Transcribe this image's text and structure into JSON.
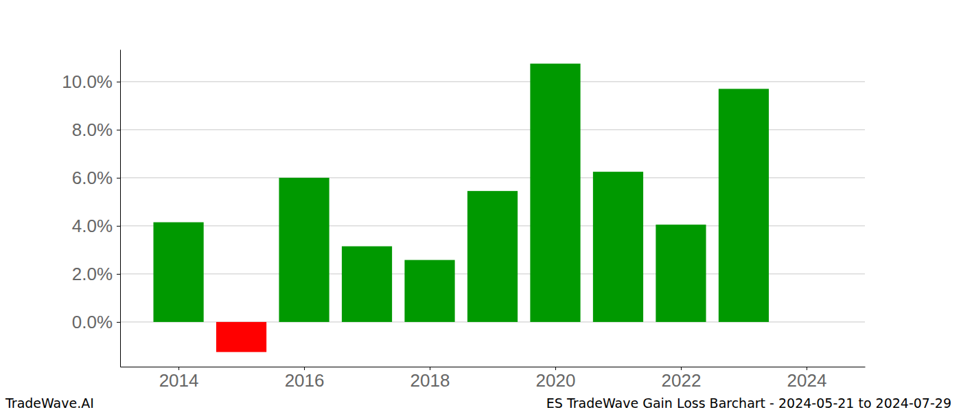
{
  "chart_data": {
    "type": "bar",
    "title": "ES TradeWave Gain Loss Barchart - 2024-05-21 to 2024-07-29",
    "annotations": [
      "TradeWave.AI"
    ],
    "x": [
      2014,
      2015,
      2016,
      2017,
      2018,
      2019,
      2020,
      2021,
      2022,
      2023
    ],
    "values": [
      4.15,
      -1.25,
      6.0,
      3.15,
      2.58,
      5.45,
      10.75,
      6.25,
      4.05,
      9.7
    ],
    "colors": [
      "#009900",
      "#ff0000",
      "#009900",
      "#009900",
      "#009900",
      "#009900",
      "#009900",
      "#009900",
      "#009900",
      "#009900"
    ],
    "xlim": [
      2013.07,
      2024.93
    ],
    "xticks": [
      2014,
      2016,
      2018,
      2020,
      2022,
      2024
    ],
    "ylim": [
      -1.86,
      11.34
    ],
    "yticks": [
      {
        "value": 0,
        "label": "0.0%"
      },
      {
        "value": 2,
        "label": "2.0%"
      },
      {
        "value": 4,
        "label": "4.0%"
      },
      {
        "value": 6,
        "label": "6.0%"
      },
      {
        "value": 8,
        "label": "8.0%"
      },
      {
        "value": 10,
        "label": "10.0%"
      }
    ],
    "grid": true
  }
}
